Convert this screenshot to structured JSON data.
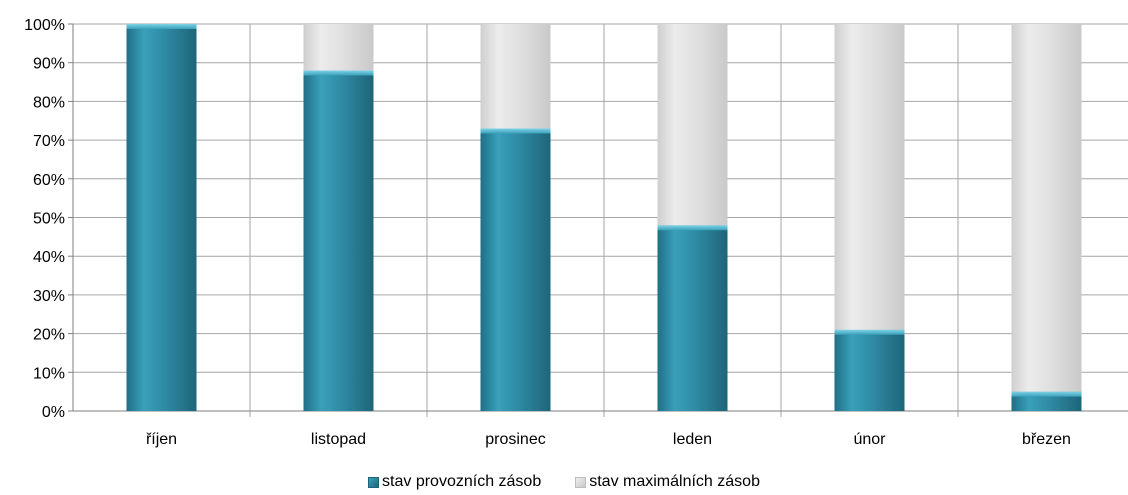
{
  "chart_data": {
    "type": "bar",
    "stacked": true,
    "categories": [
      "říjen",
      "listopad",
      "prosinec",
      "leden",
      "únor",
      "březen"
    ],
    "series": [
      {
        "name": "stav provozních zásob",
        "values": [
          100,
          88,
          73,
          48,
          21,
          5
        ],
        "color": "#2f8aa3"
      },
      {
        "name": "stav maximálních zásob",
        "values": [
          0,
          12,
          27,
          52,
          79,
          95
        ],
        "color": "#dcdcdc"
      }
    ],
    "ylim": [
      0,
      100
    ],
    "yticks": [
      "0%",
      "10%",
      "20%",
      "30%",
      "40%",
      "50%",
      "60%",
      "70%",
      "80%",
      "90%",
      "100%"
    ],
    "grid": true,
    "legend_position": "bottom",
    "title": "",
    "xlabel": "",
    "ylabel": ""
  }
}
